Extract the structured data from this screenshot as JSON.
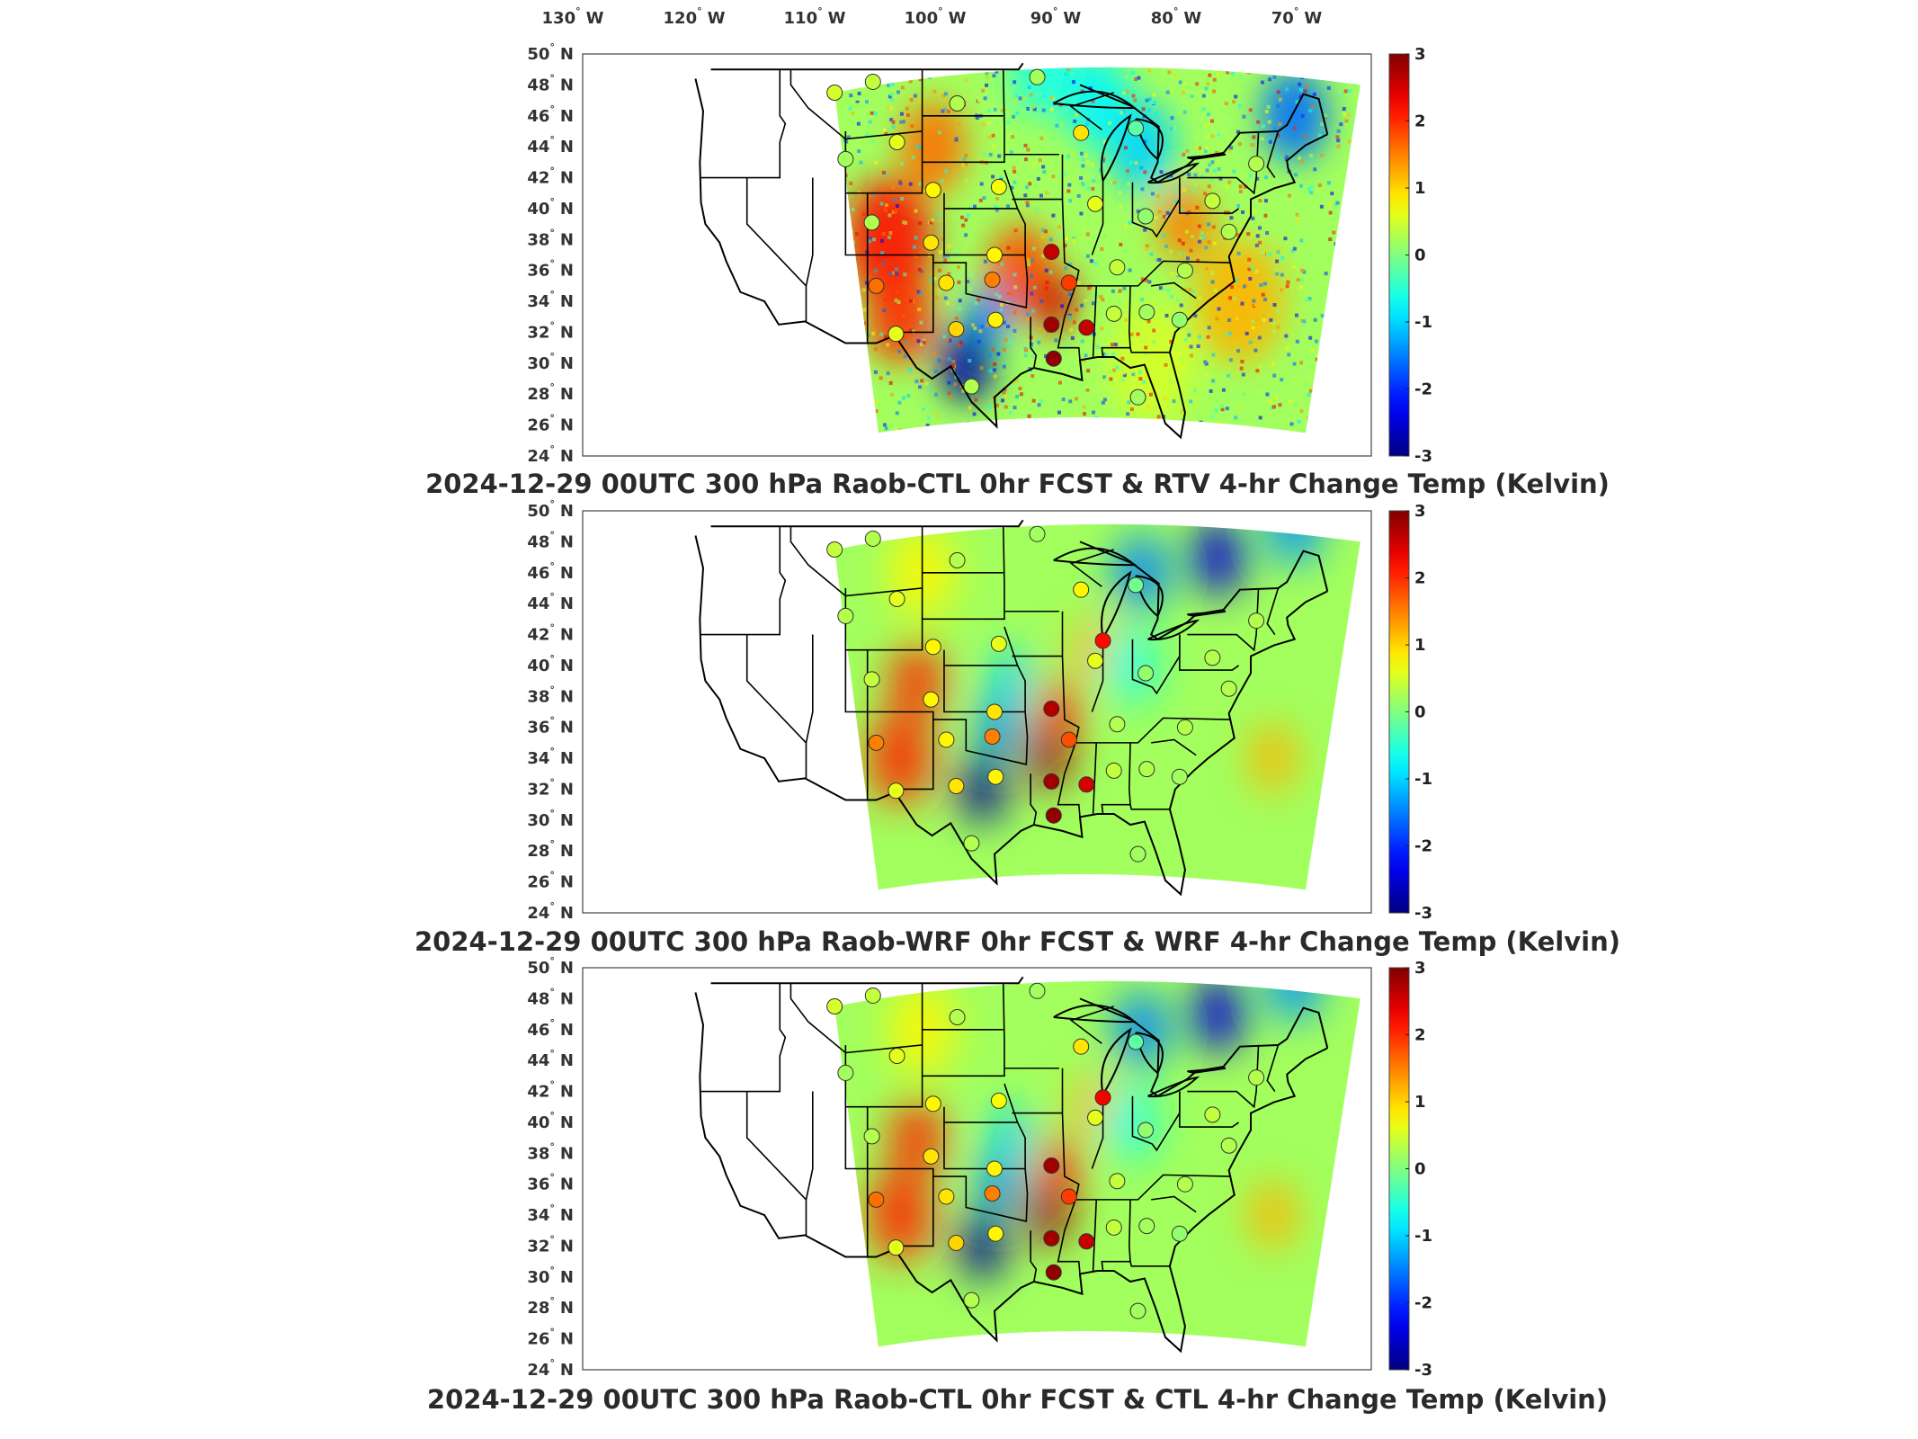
{
  "chart_data": [
    {
      "type": "heatmap",
      "title": "2024-12-29 00UTC 300 hPa Raob-CTL 0hr FCST & RTV 4-hr Change Temp (Kelvin)",
      "x_ticks": [
        "130",
        "120",
        "110",
        "100",
        "90",
        "80",
        "70"
      ],
      "x_unit": "W",
      "y_ticks": [
        "50",
        "48",
        "46",
        "44",
        "42",
        "40",
        "38",
        "36",
        "34",
        "32",
        "30",
        "28",
        "26",
        "24"
      ],
      "y_unit": "N",
      "xlim": [
        -135,
        -63
      ],
      "ylim": [
        24,
        50
      ],
      "colorbar": {
        "ticks": [
          "3",
          "2",
          "1",
          "0",
          "-1",
          "-2",
          "-3"
        ],
        "range": [
          -3,
          3
        ],
        "colormap": "jet"
      },
      "field_style": "noisy",
      "stations": [
        {
          "lon": -112.0,
          "lat": 47.5,
          "value": 0.5
        },
        {
          "lon": -108.5,
          "lat": 48.2,
          "value": 0.4
        },
        {
          "lon": -100.8,
          "lat": 46.8,
          "value": 0.3
        },
        {
          "lon": -93.5,
          "lat": 48.5,
          "value": 0.2
        },
        {
          "lon": -106.3,
          "lat": 44.3,
          "value": 0.6
        },
        {
          "lon": -111.0,
          "lat": 43.2,
          "value": 0.2
        },
        {
          "lon": -103.0,
          "lat": 41.2,
          "value": 0.8
        },
        {
          "lon": -97.0,
          "lat": 41.4,
          "value": 0.7
        },
        {
          "lon": -89.5,
          "lat": 44.9,
          "value": 0.9
        },
        {
          "lon": -84.5,
          "lat": 45.2,
          "value": -0.2
        },
        {
          "lon": -88.2,
          "lat": 40.3,
          "value": 0.6
        },
        {
          "lon": -83.6,
          "lat": 39.5,
          "value": 0.1
        },
        {
          "lon": -77.5,
          "lat": 40.5,
          "value": 0.4
        },
        {
          "lon": -73.5,
          "lat": 42.9,
          "value": 0.3
        },
        {
          "lon": -108.6,
          "lat": 39.1,
          "value": 0.3
        },
        {
          "lon": -103.2,
          "lat": 37.8,
          "value": 0.9
        },
        {
          "lon": -97.4,
          "lat": 37.0,
          "value": 0.8
        },
        {
          "lon": -92.2,
          "lat": 37.2,
          "value": 2.6
        },
        {
          "lon": -90.6,
          "lat": 35.2,
          "value": 1.9
        },
        {
          "lon": -86.2,
          "lat": 36.2,
          "value": 0.4
        },
        {
          "lon": -80.0,
          "lat": 36.0,
          "value": 0.3
        },
        {
          "lon": -108.2,
          "lat": 35.0,
          "value": 1.6
        },
        {
          "lon": -101.8,
          "lat": 35.2,
          "value": 0.9
        },
        {
          "lon": -97.6,
          "lat": 35.4,
          "value": 1.5
        },
        {
          "lon": -97.3,
          "lat": 32.8,
          "value": 0.8
        },
        {
          "lon": -92.2,
          "lat": 32.5,
          "value": 2.8
        },
        {
          "lon": -89.0,
          "lat": 32.3,
          "value": 2.6
        },
        {
          "lon": -86.5,
          "lat": 33.2,
          "value": 0.4
        },
        {
          "lon": -83.5,
          "lat": 33.3,
          "value": 0.2
        },
        {
          "lon": -80.5,
          "lat": 32.8,
          "value": 0.1
        },
        {
          "lon": -92.0,
          "lat": 30.3,
          "value": 2.9
        },
        {
          "lon": -106.4,
          "lat": 31.9,
          "value": 0.6
        },
        {
          "lon": -100.9,
          "lat": 32.2,
          "value": 1.0
        },
        {
          "lon": -99.5,
          "lat": 28.5,
          "value": 0.3
        },
        {
          "lon": -84.3,
          "lat": 27.8,
          "value": 0.2
        },
        {
          "lon": -76.0,
          "lat": 38.5,
          "value": 0.3
        }
      ]
    },
    {
      "type": "heatmap",
      "title": "2024-12-29 00UTC 300 hPa Raob-WRF 0hr FCST & WRF 4-hr Change Temp (Kelvin)",
      "x_ticks": [],
      "y_ticks": [
        "50",
        "48",
        "46",
        "44",
        "42",
        "40",
        "38",
        "36",
        "34",
        "32",
        "30",
        "28",
        "26",
        "24"
      ],
      "y_unit": "N",
      "xlim": [
        -135,
        -63
      ],
      "ylim": [
        24,
        50
      ],
      "colorbar": {
        "ticks": [
          "3",
          "2",
          "1",
          "0",
          "-1",
          "-2",
          "-3"
        ],
        "range": [
          -3,
          3
        ],
        "colormap": "jet"
      },
      "field_style": "smooth",
      "stations": [
        {
          "lon": -112.0,
          "lat": 47.5,
          "value": 0.4
        },
        {
          "lon": -108.5,
          "lat": 48.2,
          "value": 0.3
        },
        {
          "lon": -100.8,
          "lat": 46.8,
          "value": 0.3
        },
        {
          "lon": -93.5,
          "lat": 48.5,
          "value": 0.2
        },
        {
          "lon": -106.3,
          "lat": 44.3,
          "value": 0.6
        },
        {
          "lon": -111.0,
          "lat": 43.2,
          "value": 0.3
        },
        {
          "lon": -103.0,
          "lat": 41.2,
          "value": 0.8
        },
        {
          "lon": -97.0,
          "lat": 41.4,
          "value": 0.6
        },
        {
          "lon": -89.5,
          "lat": 44.9,
          "value": 0.8
        },
        {
          "lon": -84.5,
          "lat": 45.2,
          "value": -0.1
        },
        {
          "lon": -87.5,
          "lat": 41.6,
          "value": 2.2
        },
        {
          "lon": -88.2,
          "lat": 40.3,
          "value": 0.6
        },
        {
          "lon": -83.6,
          "lat": 39.5,
          "value": 0.1
        },
        {
          "lon": -77.5,
          "lat": 40.5,
          "value": 0.3
        },
        {
          "lon": -73.5,
          "lat": 42.9,
          "value": 0.3
        },
        {
          "lon": -108.6,
          "lat": 39.1,
          "value": 0.4
        },
        {
          "lon": -103.2,
          "lat": 37.8,
          "value": 0.8
        },
        {
          "lon": -97.4,
          "lat": 37.0,
          "value": 0.9
        },
        {
          "lon": -92.2,
          "lat": 37.2,
          "value": 2.7
        },
        {
          "lon": -90.6,
          "lat": 35.2,
          "value": 1.8
        },
        {
          "lon": -86.2,
          "lat": 36.2,
          "value": 0.3
        },
        {
          "lon": -80.0,
          "lat": 36.0,
          "value": 0.3
        },
        {
          "lon": -108.2,
          "lat": 35.0,
          "value": 1.5
        },
        {
          "lon": -101.8,
          "lat": 35.2,
          "value": 0.8
        },
        {
          "lon": -97.6,
          "lat": 35.4,
          "value": 1.5
        },
        {
          "lon": -97.3,
          "lat": 32.8,
          "value": 0.8
        },
        {
          "lon": -92.2,
          "lat": 32.5,
          "value": 2.8
        },
        {
          "lon": -89.0,
          "lat": 32.3,
          "value": 2.5
        },
        {
          "lon": -86.5,
          "lat": 33.2,
          "value": 0.4
        },
        {
          "lon": -83.5,
          "lat": 33.3,
          "value": 0.3
        },
        {
          "lon": -80.5,
          "lat": 32.8,
          "value": 0.2
        },
        {
          "lon": -92.0,
          "lat": 30.3,
          "value": 2.9
        },
        {
          "lon": -106.4,
          "lat": 31.9,
          "value": 0.6
        },
        {
          "lon": -100.9,
          "lat": 32.2,
          "value": 0.9
        },
        {
          "lon": -99.5,
          "lat": 28.5,
          "value": 0.3
        },
        {
          "lon": -84.3,
          "lat": 27.8,
          "value": 0.2
        },
        {
          "lon": -76.0,
          "lat": 38.5,
          "value": 0.3
        }
      ]
    },
    {
      "type": "heatmap",
      "title": "2024-12-29 00UTC 300 hPa Raob-CTL 0hr FCST & CTL 4-hr Change Temp (Kelvin)",
      "x_ticks": [],
      "y_ticks": [
        "50",
        "48",
        "46",
        "44",
        "42",
        "40",
        "38",
        "36",
        "34",
        "32",
        "30",
        "28",
        "26",
        "24"
      ],
      "y_unit": "N",
      "xlim": [
        -135,
        -63
      ],
      "ylim": [
        24,
        50
      ],
      "colorbar": {
        "ticks": [
          "3",
          "2",
          "1",
          "0",
          "-1",
          "-2",
          "-3"
        ],
        "range": [
          -3,
          3
        ],
        "colormap": "jet"
      },
      "field_style": "smooth",
      "stations": [
        {
          "lon": -112.0,
          "lat": 47.5,
          "value": 0.5
        },
        {
          "lon": -108.5,
          "lat": 48.2,
          "value": 0.4
        },
        {
          "lon": -100.8,
          "lat": 46.8,
          "value": 0.3
        },
        {
          "lon": -93.5,
          "lat": 48.5,
          "value": 0.2
        },
        {
          "lon": -106.3,
          "lat": 44.3,
          "value": 0.6
        },
        {
          "lon": -111.0,
          "lat": 43.2,
          "value": 0.2
        },
        {
          "lon": -103.0,
          "lat": 41.2,
          "value": 0.8
        },
        {
          "lon": -97.0,
          "lat": 41.4,
          "value": 0.7
        },
        {
          "lon": -89.5,
          "lat": 44.9,
          "value": 0.9
        },
        {
          "lon": -84.5,
          "lat": 45.2,
          "value": -0.2
        },
        {
          "lon": -87.5,
          "lat": 41.6,
          "value": 2.3
        },
        {
          "lon": -88.2,
          "lat": 40.3,
          "value": 0.6
        },
        {
          "lon": -83.6,
          "lat": 39.5,
          "value": 0.1
        },
        {
          "lon": -77.5,
          "lat": 40.5,
          "value": 0.4
        },
        {
          "lon": -73.5,
          "lat": 42.9,
          "value": 0.3
        },
        {
          "lon": -108.6,
          "lat": 39.1,
          "value": 0.3
        },
        {
          "lon": -103.2,
          "lat": 37.8,
          "value": 0.9
        },
        {
          "lon": -97.4,
          "lat": 37.0,
          "value": 0.8
        },
        {
          "lon": -92.2,
          "lat": 37.2,
          "value": 2.8
        },
        {
          "lon": -90.6,
          "lat": 35.2,
          "value": 1.9
        },
        {
          "lon": -86.2,
          "lat": 36.2,
          "value": 0.4
        },
        {
          "lon": -80.0,
          "lat": 36.0,
          "value": 0.3
        },
        {
          "lon": -108.2,
          "lat": 35.0,
          "value": 1.6
        },
        {
          "lon": -101.8,
          "lat": 35.2,
          "value": 0.9
        },
        {
          "lon": -97.6,
          "lat": 35.4,
          "value": 1.5
        },
        {
          "lon": -97.3,
          "lat": 32.8,
          "value": 0.8
        },
        {
          "lon": -92.2,
          "lat": 32.5,
          "value": 2.8
        },
        {
          "lon": -89.0,
          "lat": 32.3,
          "value": 2.6
        },
        {
          "lon": -86.5,
          "lat": 33.2,
          "value": 0.4
        },
        {
          "lon": -83.5,
          "lat": 33.3,
          "value": 0.2
        },
        {
          "lon": -80.5,
          "lat": 32.8,
          "value": 0.1
        },
        {
          "lon": -92.0,
          "lat": 30.3,
          "value": 2.9
        },
        {
          "lon": -106.4,
          "lat": 31.9,
          "value": 0.6
        },
        {
          "lon": -100.9,
          "lat": 32.2,
          "value": 1.0
        },
        {
          "lon": -99.5,
          "lat": 28.5,
          "value": 0.3
        },
        {
          "lon": -84.3,
          "lat": 27.8,
          "value": 0.2
        },
        {
          "lon": -76.0,
          "lat": 38.5,
          "value": 0.3
        }
      ]
    }
  ]
}
